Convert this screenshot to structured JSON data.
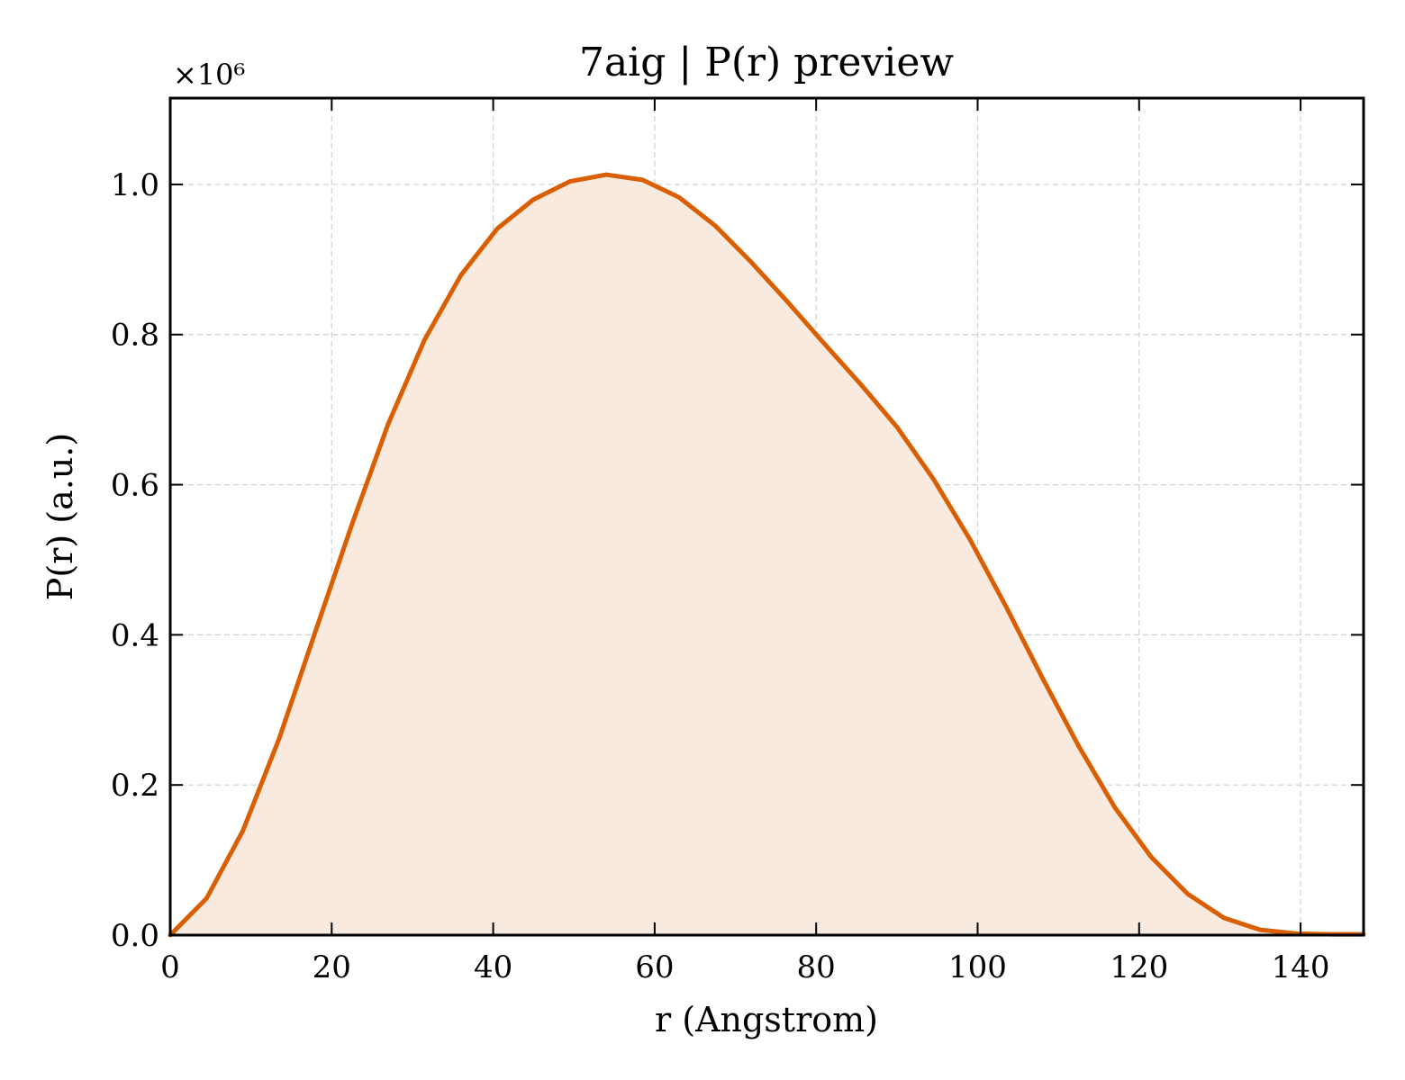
{
  "chart_data": {
    "type": "line",
    "title": "7aig | P(r) preview",
    "xlabel": "r (Angstrom)",
    "ylabel": "P(r) (a.u.)",
    "y_scale_label": "×10⁶",
    "xlim": [
      0,
      147.8
    ],
    "ylim": [
      0,
      1.115
    ],
    "y_multiplier": 1000000,
    "xticks": [
      0,
      20,
      40,
      60,
      80,
      100,
      120,
      140
    ],
    "xtick_labels": [
      "0",
      "20",
      "40",
      "60",
      "80",
      "100",
      "120",
      "140"
    ],
    "yticks": [
      0.0,
      0.2,
      0.4,
      0.6,
      0.8,
      1.0
    ],
    "ytick_labels": [
      "0.0",
      "0.2",
      "0.4",
      "0.6",
      "0.8",
      "1.0"
    ],
    "grid": true,
    "colors": {
      "line": "#d95f02",
      "fill": "#f8eade"
    },
    "series": [
      {
        "x": [
          0,
          4.5,
          9.0,
          13.5,
          18.0,
          22.5,
          27.0,
          31.5,
          36.0,
          40.5,
          45.0,
          49.5,
          54.0,
          58.5,
          63.0,
          67.5,
          72.0,
          76.5,
          81.0,
          85.5,
          90.0,
          94.5,
          99.0,
          103.5,
          108.0,
          112.5,
          117.0,
          121.5,
          126.0,
          130.5,
          135.0,
          139.5,
          144.0,
          147.8
        ],
        "y": [
          0.0,
          0.049,
          0.139,
          0.262,
          0.405,
          0.547,
          0.681,
          0.793,
          0.879,
          0.941,
          0.98,
          1.004,
          1.013,
          1.006,
          0.983,
          0.945,
          0.896,
          0.843,
          0.788,
          0.734,
          0.677,
          0.608,
          0.528,
          0.438,
          0.343,
          0.252,
          0.17,
          0.104,
          0.055,
          0.023,
          0.007,
          0.002,
          0.001,
          0.001
        ]
      }
    ]
  }
}
